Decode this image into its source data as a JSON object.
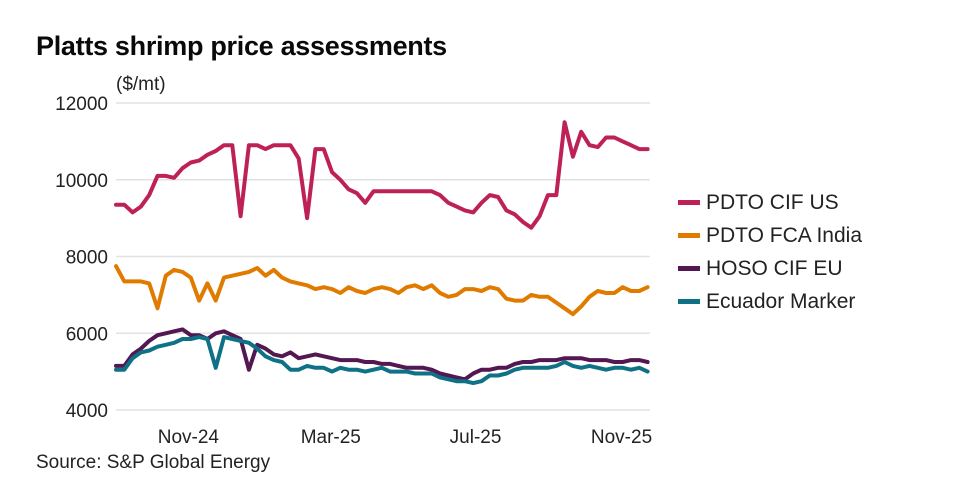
{
  "title": "Platts shrimp price assessments",
  "unit_label": "($/mt)",
  "source": "Source: S&P Global Energy",
  "chart_data": {
    "type": "line",
    "title": "Platts shrimp price assessments",
    "xlabel": "",
    "ylabel": "($/mt)",
    "ylim": [
      4000,
      12000
    ],
    "yticks": [
      4000,
      6000,
      8000,
      10000,
      12000
    ],
    "ytick_labels": [
      "4000",
      "6000",
      "8000",
      "10000",
      "12000"
    ],
    "xlim": [
      "2024-09-01",
      "2025-11-25"
    ],
    "xticks": [
      "2024-11-01",
      "2025-03-01",
      "2025-07-01",
      "2025-11-01"
    ],
    "xtick_labels": [
      "Nov-24",
      "Mar-25",
      "Jul-25",
      "Nov-25"
    ],
    "grid": "horizontal",
    "legend_position": "right",
    "x": [
      "2024-09-01",
      "2024-09-08",
      "2024-09-15",
      "2024-09-22",
      "2024-09-29",
      "2024-10-06",
      "2024-10-13",
      "2024-10-20",
      "2024-10-27",
      "2024-11-03",
      "2024-11-10",
      "2024-11-17",
      "2024-11-24",
      "2024-12-01",
      "2024-12-08",
      "2024-12-15",
      "2024-12-22",
      "2024-12-29",
      "2025-01-05",
      "2025-01-12",
      "2025-01-19",
      "2025-01-26",
      "2025-02-02",
      "2025-02-09",
      "2025-02-16",
      "2025-02-23",
      "2025-03-02",
      "2025-03-09",
      "2025-03-16",
      "2025-03-23",
      "2025-03-30",
      "2025-04-06",
      "2025-04-13",
      "2025-04-20",
      "2025-04-27",
      "2025-05-04",
      "2025-05-11",
      "2025-05-18",
      "2025-05-25",
      "2025-06-01",
      "2025-06-08",
      "2025-06-15",
      "2025-06-22",
      "2025-06-29",
      "2025-07-06",
      "2025-07-13",
      "2025-07-20",
      "2025-07-27",
      "2025-08-03",
      "2025-08-10",
      "2025-08-17",
      "2025-08-24",
      "2025-08-31",
      "2025-09-07",
      "2025-09-14",
      "2025-09-21",
      "2025-09-28",
      "2025-10-05",
      "2025-10-12",
      "2025-10-19",
      "2025-10-26",
      "2025-11-02",
      "2025-11-09",
      "2025-11-16",
      "2025-11-23"
    ],
    "series": [
      {
        "name": "PDTO CIF US",
        "color": "#BE2157",
        "values": [
          9350,
          9350,
          9150,
          9300,
          9600,
          10100,
          10100,
          10050,
          10300,
          10450,
          10500,
          10650,
          10750,
          10900,
          10900,
          9050,
          10900,
          10900,
          10800,
          10900,
          10900,
          10900,
          10550,
          9000,
          10800,
          10800,
          10200,
          10000,
          9750,
          9650,
          9400,
          9700,
          9700,
          9700,
          9700,
          9700,
          9700,
          9700,
          9700,
          9600,
          9400,
          9300,
          9200,
          9150,
          9400,
          9600,
          9550,
          9200,
          9100,
          8900,
          8750,
          9050,
          9600,
          9600,
          11500,
          10600,
          11250,
          10900,
          10850,
          11100,
          11100,
          11000,
          10900,
          10800,
          10800
        ]
      },
      {
        "name": "PDTO FCA India",
        "color": "#E07B00",
        "values": [
          7750,
          7350,
          7350,
          7350,
          7300,
          6650,
          7500,
          7650,
          7600,
          7450,
          6850,
          7300,
          6850,
          7450,
          7500,
          7550,
          7600,
          7700,
          7500,
          7650,
          7450,
          7350,
          7300,
          7250,
          7150,
          7200,
          7150,
          7050,
          7200,
          7100,
          7050,
          7150,
          7200,
          7150,
          7050,
          7200,
          7250,
          7150,
          7250,
          7050,
          6950,
          7000,
          7150,
          7150,
          7100,
          7200,
          7150,
          6900,
          6850,
          6850,
          7000,
          6950,
          6950,
          6800,
          6650,
          6500,
          6700,
          6950,
          7100,
          7050,
          7050,
          7200,
          7100,
          7100,
          7200
        ]
      },
      {
        "name": "HOSO CIF EU",
        "color": "#531752",
        "values": [
          5150,
          5150,
          5450,
          5600,
          5800,
          5950,
          6000,
          6050,
          6100,
          5950,
          5950,
          5850,
          6000,
          6050,
          5950,
          5850,
          5050,
          5700,
          5600,
          5450,
          5400,
          5500,
          5350,
          5400,
          5450,
          5400,
          5350,
          5300,
          5300,
          5300,
          5250,
          5250,
          5200,
          5200,
          5150,
          5100,
          5100,
          5100,
          5050,
          4950,
          4900,
          4850,
          4800,
          4950,
          5050,
          5050,
          5100,
          5100,
          5200,
          5250,
          5250,
          5300,
          5300,
          5300,
          5350,
          5350,
          5350,
          5300,
          5300,
          5300,
          5250,
          5250,
          5300,
          5300,
          5250
        ]
      },
      {
        "name": "Ecuador Marker",
        "color": "#0E7186",
        "values": [
          5050,
          5050,
          5350,
          5500,
          5550,
          5650,
          5700,
          5750,
          5850,
          5850,
          5900,
          5850,
          5100,
          5900,
          5850,
          5800,
          5750,
          5600,
          5400,
          5300,
          5250,
          5050,
          5050,
          5150,
          5100,
          5100,
          5000,
          5100,
          5050,
          5050,
          5000,
          5050,
          5100,
          5000,
          5000,
          5000,
          4950,
          4950,
          4950,
          4850,
          4800,
          4750,
          4750,
          4700,
          4750,
          4900,
          4900,
          4950,
          5050,
          5100,
          5100,
          5100,
          5100,
          5150,
          5250,
          5150,
          5100,
          5150,
          5100,
          5050,
          5100,
          5100,
          5050,
          5100,
          5000
        ]
      }
    ]
  }
}
